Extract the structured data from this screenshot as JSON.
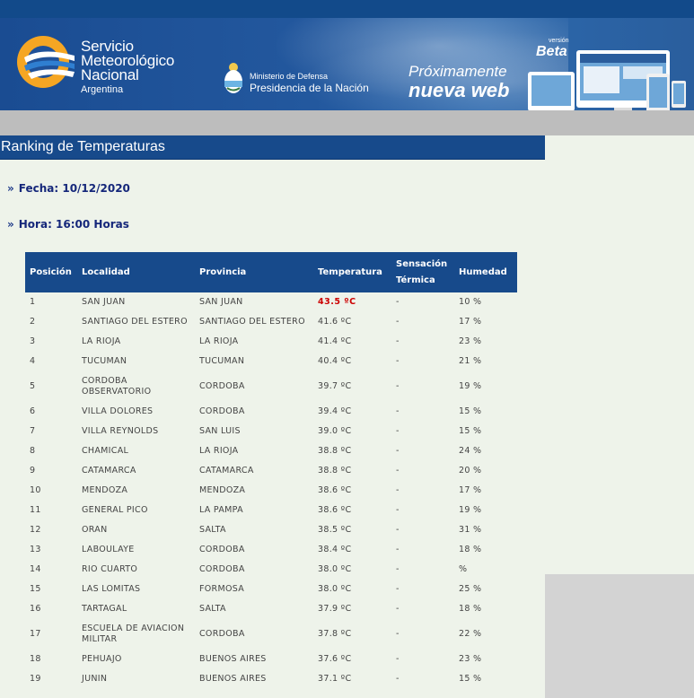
{
  "banner": {
    "org_line1": "Servicio",
    "org_line2": "Meteorológico",
    "org_line3": "Nacional",
    "org_line4": "Argentina",
    "ministry": "Ministerio de Defensa",
    "presidency": "Presidencia de la Nación",
    "promo_line1": "Próximamente",
    "promo_line2": "nueva web",
    "beta_small": "versión",
    "beta_big": "Beta"
  },
  "page": {
    "title": "Ranking de Temperaturas",
    "fecha": "Fecha: 10/12/2020",
    "hora": "Hora: 16:00 Horas",
    "arrows": "»"
  },
  "table": {
    "headers": [
      "Posición",
      "Localidad",
      "Provincia",
      "Temperatura",
      "Sensación Térmica",
      "Humedad"
    ],
    "rows": [
      {
        "pos": "1",
        "loc": "SAN JUAN",
        "prov": "SAN JUAN",
        "temp": "43.5 ºC",
        "st": "-",
        "hum": "10 %"
      },
      {
        "pos": "2",
        "loc": "SANTIAGO DEL ESTERO",
        "prov": "SANTIAGO DEL ESTERO",
        "temp": "41.6 ºC",
        "st": "-",
        "hum": "17 %"
      },
      {
        "pos": "3",
        "loc": "LA RIOJA",
        "prov": "LA RIOJA",
        "temp": "41.4 ºC",
        "st": "-",
        "hum": "23 %"
      },
      {
        "pos": "4",
        "loc": "TUCUMAN",
        "prov": "TUCUMAN",
        "temp": "40.4 ºC",
        "st": "-",
        "hum": "21 %"
      },
      {
        "pos": "5",
        "loc": "CORDOBA OBSERVATORIO",
        "prov": "CORDOBA",
        "temp": "39.7 ºC",
        "st": "-",
        "hum": "19 %"
      },
      {
        "pos": "6",
        "loc": "VILLA DOLORES",
        "prov": "CORDOBA",
        "temp": "39.4 ºC",
        "st": "-",
        "hum": "15 %"
      },
      {
        "pos": "7",
        "loc": "VILLA REYNOLDS",
        "prov": "SAN LUIS",
        "temp": "39.0 ºC",
        "st": "-",
        "hum": "15 %"
      },
      {
        "pos": "8",
        "loc": "CHAMICAL",
        "prov": "LA RIOJA",
        "temp": "38.8 ºC",
        "st": "-",
        "hum": "24 %"
      },
      {
        "pos": "9",
        "loc": "CATAMARCA",
        "prov": "CATAMARCA",
        "temp": "38.8 ºC",
        "st": "-",
        "hum": "20 %"
      },
      {
        "pos": "10",
        "loc": "MENDOZA",
        "prov": "MENDOZA",
        "temp": "38.6 ºC",
        "st": "-",
        "hum": "17 %"
      },
      {
        "pos": "11",
        "loc": "GENERAL PICO",
        "prov": "LA PAMPA",
        "temp": "38.6 ºC",
        "st": "-",
        "hum": "19 %"
      },
      {
        "pos": "12",
        "loc": "ORAN",
        "prov": "SALTA",
        "temp": "38.5 ºC",
        "st": "-",
        "hum": "31 %"
      },
      {
        "pos": "13",
        "loc": "LABOULAYE",
        "prov": "CORDOBA",
        "temp": "38.4 ºC",
        "st": "-",
        "hum": "18 %"
      },
      {
        "pos": "14",
        "loc": "RIO CUARTO",
        "prov": "CORDOBA",
        "temp": "38.0 ºC",
        "st": "-",
        "hum": "%"
      },
      {
        "pos": "15",
        "loc": "LAS LOMITAS",
        "prov": "FORMOSA",
        "temp": "38.0 ºC",
        "st": "-",
        "hum": "25 %"
      },
      {
        "pos": "16",
        "loc": "TARTAGAL",
        "prov": "SALTA",
        "temp": "37.9 ºC",
        "st": "-",
        "hum": "18 %"
      },
      {
        "pos": "17",
        "loc": "ESCUELA DE AVIACION MILITAR",
        "prov": "CORDOBA",
        "temp": "37.8 ºC",
        "st": "-",
        "hum": "22 %"
      },
      {
        "pos": "18",
        "loc": "PEHUAJO",
        "prov": "BUENOS AIRES",
        "temp": "37.6 ºC",
        "st": "-",
        "hum": "23 %"
      },
      {
        "pos": "19",
        "loc": "JUNIN",
        "prov": "BUENOS AIRES",
        "temp": "37.1 ºC",
        "st": "-",
        "hum": "15 %"
      }
    ]
  },
  "colors": {
    "header_blue": "#174a8b",
    "page_bg": "#eef3ea",
    "hot_red": "#cc0000",
    "link_navy": "#15277a"
  }
}
